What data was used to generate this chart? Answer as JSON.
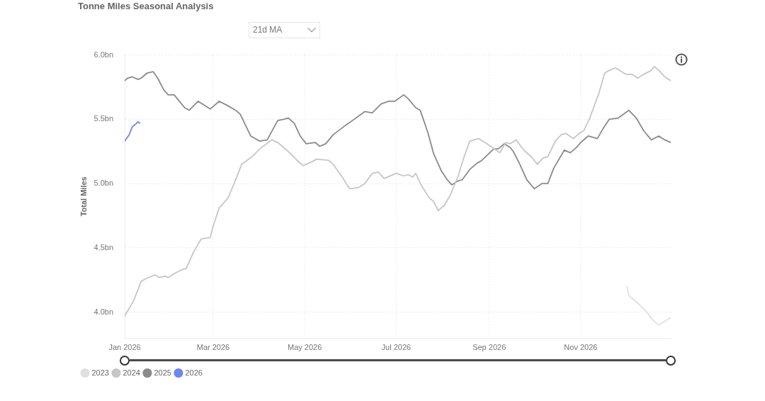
{
  "chart_data": {
    "type": "line",
    "title": "Tonne Miles Seasonal Analysis",
    "ylabel": "Total Miles",
    "annotations": [
      "21d MA"
    ],
    "xlim": [
      "2026-01-01",
      "2026-12-31"
    ],
    "xticks": [
      {
        "value": "2026-01-01",
        "label": "Jan 2026"
      },
      {
        "value": "2026-03-01",
        "label": "Mar 2026"
      },
      {
        "value": "2026-05-01",
        "label": "May 2026"
      },
      {
        "value": "2026-07-01",
        "label": "Jul 2026"
      },
      {
        "value": "2026-09-01",
        "label": "Sep 2026"
      },
      {
        "value": "2026-11-01",
        "label": "Nov 2026"
      }
    ],
    "ylim": [
      3.8,
      6.0
    ],
    "yticks": [
      {
        "value": 4.0,
        "label": "4.0bn"
      },
      {
        "value": 4.5,
        "label": "4.5bn"
      },
      {
        "value": 5.0,
        "label": "5.0bn"
      },
      {
        "value": 5.5,
        "label": "5.5bn"
      },
      {
        "value": 6.0,
        "label": "6.0bn"
      }
    ],
    "grid": true,
    "legend": "bottom left",
    "marker": "none",
    "line_style": "solid",
    "series": [
      {
        "name": "2023",
        "color": "#e0e0e0",
        "x": [
          "2026-12-02",
          "2026-12-03",
          "2026-12-05",
          "2026-12-09",
          "2026-12-15",
          "2026-12-19",
          "2026-12-23",
          "2026-12-27",
          "2026-12-31"
        ],
        "values": [
          4.2,
          4.13,
          4.11,
          4.07,
          4.0,
          3.94,
          3.9,
          3.93,
          3.96
        ]
      },
      {
        "name": "2024",
        "color": "#c6c6c6",
        "x": [
          "2026-01-01",
          "2026-01-04",
          "2026-01-07",
          "2026-01-12",
          "2026-01-15",
          "2026-01-21",
          "2026-01-24",
          "2026-01-28",
          "2026-01-30",
          "2026-02-03",
          "2026-02-08",
          "2026-02-11",
          "2026-02-16",
          "2026-02-21",
          "2026-02-27",
          "2026-03-01",
          "2026-03-05",
          "2026-03-11",
          "2026-03-16",
          "2026-03-20",
          "2026-03-27",
          "2026-04-01",
          "2026-04-09",
          "2026-04-13",
          "2026-04-20",
          "2026-04-26",
          "2026-04-30",
          "2026-05-04",
          "2026-05-09",
          "2026-05-17",
          "2026-05-20",
          "2026-05-26",
          "2026-05-31",
          "2026-06-06",
          "2026-06-10",
          "2026-06-15",
          "2026-06-19",
          "2026-06-23",
          "2026-07-01",
          "2026-07-06",
          "2026-07-09",
          "2026-07-12",
          "2026-07-14",
          "2026-07-18",
          "2026-07-23",
          "2026-07-26",
          "2026-07-29",
          "2026-08-02",
          "2026-08-06",
          "2026-08-11",
          "2026-08-15",
          "2026-08-19",
          "2026-08-25",
          "2026-08-29",
          "2026-09-02",
          "2026-09-08",
          "2026-09-12",
          "2026-09-15",
          "2026-09-19",
          "2026-09-24",
          "2026-09-29",
          "2026-10-03",
          "2026-10-07",
          "2026-10-10",
          "2026-10-15",
          "2026-10-19",
          "2026-10-22",
          "2026-10-27",
          "2026-11-01",
          "2026-11-03",
          "2026-11-07",
          "2026-11-13",
          "2026-11-17",
          "2026-11-20",
          "2026-11-24",
          "2026-11-27",
          "2026-12-01",
          "2026-12-05",
          "2026-12-09",
          "2026-12-13",
          "2026-12-18",
          "2026-12-20",
          "2026-12-23",
          "2026-12-27",
          "2026-12-31"
        ],
        "values": [
          3.97,
          4.03,
          4.09,
          4.24,
          4.26,
          4.29,
          4.27,
          4.28,
          4.27,
          4.3,
          4.33,
          4.34,
          4.47,
          4.57,
          4.58,
          4.67,
          4.81,
          4.89,
          5.03,
          5.15,
          5.21,
          5.27,
          5.34,
          5.32,
          5.25,
          5.18,
          5.14,
          5.16,
          5.19,
          5.18,
          5.15,
          5.05,
          4.96,
          4.97,
          5.0,
          5.08,
          5.09,
          5.04,
          5.08,
          5.06,
          5.07,
          5.05,
          5.08,
          4.98,
          4.89,
          4.86,
          4.79,
          4.83,
          4.91,
          5.05,
          5.2,
          5.33,
          5.35,
          5.32,
          5.29,
          5.24,
          5.32,
          5.31,
          5.34,
          5.26,
          5.21,
          5.15,
          5.2,
          5.21,
          5.33,
          5.38,
          5.39,
          5.35,
          5.4,
          5.41,
          5.51,
          5.7,
          5.86,
          5.88,
          5.9,
          5.88,
          5.85,
          5.85,
          5.82,
          5.85,
          5.88,
          5.91,
          5.88,
          5.83,
          5.8
        ]
      },
      {
        "name": "2025",
        "color": "#8a8a8a",
        "x": [
          "2026-01-01",
          "2026-01-03",
          "2026-01-06",
          "2026-01-10",
          "2026-01-12",
          "2026-01-16",
          "2026-01-20",
          "2026-01-23",
          "2026-01-27",
          "2026-01-30",
          "2026-02-03",
          "2026-02-10",
          "2026-02-13",
          "2026-02-19",
          "2026-02-27",
          "2026-03-05",
          "2026-03-10",
          "2026-03-16",
          "2026-03-19",
          "2026-03-26",
          "2026-04-01",
          "2026-04-06",
          "2026-04-13",
          "2026-04-17",
          "2026-04-20",
          "2026-04-24",
          "2026-04-28",
          "2026-05-02",
          "2026-05-08",
          "2026-05-11",
          "2026-05-15",
          "2026-05-20",
          "2026-05-29",
          "2026-06-03",
          "2026-06-10",
          "2026-06-15",
          "2026-06-21",
          "2026-06-26",
          "2026-06-30",
          "2026-07-06",
          "2026-07-09",
          "2026-07-14",
          "2026-07-17",
          "2026-07-22",
          "2026-07-26",
          "2026-07-31",
          "2026-08-04",
          "2026-08-07",
          "2026-08-11",
          "2026-08-14",
          "2026-08-19",
          "2026-08-24",
          "2026-08-27",
          "2026-09-04",
          "2026-09-07",
          "2026-09-11",
          "2026-09-15",
          "2026-09-17",
          "2026-09-21",
          "2026-09-26",
          "2026-10-01",
          "2026-10-06",
          "2026-10-10",
          "2026-10-14",
          "2026-10-21",
          "2026-10-25",
          "2026-10-29",
          "2026-11-01",
          "2026-11-06",
          "2026-11-12",
          "2026-11-16",
          "2026-11-20",
          "2026-11-26",
          "2026-12-03",
          "2026-12-08",
          "2026-12-13",
          "2026-12-18",
          "2026-12-23",
          "2026-12-27",
          "2026-12-31"
        ],
        "values": [
          5.8,
          5.82,
          5.83,
          5.81,
          5.82,
          5.86,
          5.87,
          5.82,
          5.73,
          5.69,
          5.69,
          5.59,
          5.57,
          5.64,
          5.58,
          5.64,
          5.61,
          5.57,
          5.54,
          5.37,
          5.33,
          5.34,
          5.49,
          5.5,
          5.51,
          5.47,
          5.37,
          5.31,
          5.32,
          5.29,
          5.31,
          5.38,
          5.46,
          5.5,
          5.56,
          5.55,
          5.62,
          5.64,
          5.64,
          5.69,
          5.66,
          5.59,
          5.57,
          5.4,
          5.23,
          5.1,
          5.03,
          4.99,
          5.02,
          5.03,
          5.11,
          5.16,
          5.18,
          5.27,
          5.27,
          5.31,
          5.28,
          5.25,
          5.16,
          5.03,
          4.96,
          5.0,
          5.0,
          5.12,
          5.26,
          5.24,
          5.28,
          5.32,
          5.37,
          5.35,
          5.43,
          5.5,
          5.51,
          5.57,
          5.51,
          5.41,
          5.34,
          5.37,
          5.34,
          5.32
        ]
      },
      {
        "name": "2026",
        "color": "#6f85f2",
        "x": [
          "2026-01-01",
          "2026-01-04",
          "2026-01-06",
          "2026-01-08",
          "2026-01-10",
          "2026-01-11"
        ],
        "values": [
          5.33,
          5.38,
          5.44,
          5.46,
          5.48,
          5.47
        ]
      }
    ]
  }
}
